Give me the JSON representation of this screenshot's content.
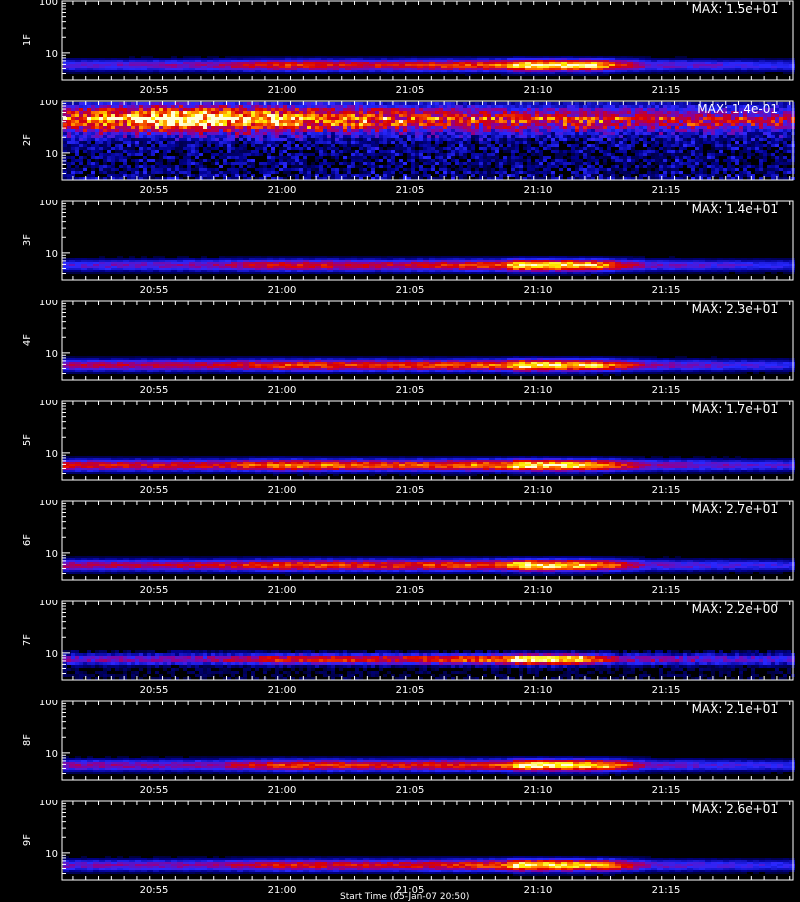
{
  "chart_data": [
    {
      "type": "heatmap",
      "ylabel": "1F",
      "max_label": "MAX: 1.5e+01",
      "max": 15,
      "yscale": "log",
      "ylim": [
        3,
        100
      ],
      "yticks": [
        "10",
        "100"
      ],
      "xticks": [
        "20:55",
        "21:00",
        "21:05",
        "21:10",
        "21:15"
      ],
      "band_center": 6,
      "noisy": false,
      "profile": [
        [
          0.0,
          0.35
        ],
        [
          0.2,
          0.45
        ],
        [
          0.3,
          0.65
        ],
        [
          0.45,
          0.6
        ],
        [
          0.6,
          0.75
        ],
        [
          0.62,
          1.0
        ],
        [
          0.72,
          0.95
        ],
        [
          0.8,
          0.4
        ],
        [
          1.0,
          0.3
        ]
      ]
    },
    {
      "type": "heatmap",
      "ylabel": "2F",
      "max_label": "MAX: 1.4e-01",
      "max": 0.14,
      "yscale": "log",
      "ylim": [
        3,
        100
      ],
      "yticks": [
        "10",
        "100"
      ],
      "xticks": [
        "20:55",
        "21:00",
        "21:05",
        "21:10",
        "21:15"
      ],
      "band_center": 50,
      "noisy": true,
      "profile": [
        [
          0.0,
          0.6
        ],
        [
          0.15,
          0.95
        ],
        [
          0.3,
          0.75
        ],
        [
          0.5,
          0.55
        ],
        [
          0.7,
          0.5
        ],
        [
          1.0,
          0.4
        ]
      ]
    },
    {
      "type": "heatmap",
      "ylabel": "3F",
      "max_label": "MAX: 1.4e+01",
      "max": 14,
      "yscale": "log",
      "ylim": [
        3,
        100
      ],
      "yticks": [
        "10",
        "100"
      ],
      "xticks": [
        "20:55",
        "21:00",
        "21:05",
        "21:10",
        "21:15"
      ],
      "band_center": 6,
      "noisy": false,
      "profile": [
        [
          0.0,
          0.35
        ],
        [
          0.2,
          0.45
        ],
        [
          0.3,
          0.62
        ],
        [
          0.45,
          0.55
        ],
        [
          0.6,
          0.7
        ],
        [
          0.62,
          1.0
        ],
        [
          0.72,
          0.9
        ],
        [
          0.8,
          0.4
        ],
        [
          1.0,
          0.3
        ]
      ]
    },
    {
      "type": "heatmap",
      "ylabel": "4F",
      "max_label": "MAX: 2.3e+01",
      "max": 23,
      "yscale": "log",
      "ylim": [
        3,
        100
      ],
      "yticks": [
        "10",
        "100"
      ],
      "xticks": [
        "20:55",
        "21:00",
        "21:05",
        "21:10",
        "21:15"
      ],
      "band_center": 6,
      "noisy": false,
      "profile": [
        [
          0.0,
          0.5
        ],
        [
          0.2,
          0.55
        ],
        [
          0.3,
          0.7
        ],
        [
          0.45,
          0.65
        ],
        [
          0.6,
          0.75
        ],
        [
          0.62,
          1.0
        ],
        [
          0.72,
          0.9
        ],
        [
          0.8,
          0.45
        ],
        [
          1.0,
          0.3
        ]
      ]
    },
    {
      "type": "heatmap",
      "ylabel": "5F",
      "max_label": "MAX: 1.7e+01",
      "max": 17,
      "yscale": "log",
      "ylim": [
        3,
        100
      ],
      "yticks": [
        "10",
        "100"
      ],
      "xticks": [
        "20:55",
        "21:00",
        "21:05",
        "21:10",
        "21:15"
      ],
      "band_center": 6,
      "noisy": false,
      "profile": [
        [
          0.0,
          0.6
        ],
        [
          0.2,
          0.6
        ],
        [
          0.3,
          0.8
        ],
        [
          0.45,
          0.7
        ],
        [
          0.6,
          0.8
        ],
        [
          0.62,
          1.0
        ],
        [
          0.72,
          0.9
        ],
        [
          0.8,
          0.45
        ],
        [
          1.0,
          0.35
        ]
      ]
    },
    {
      "type": "heatmap",
      "ylabel": "6F",
      "max_label": "MAX: 2.7e+01",
      "max": 27,
      "yscale": "log",
      "ylim": [
        3,
        100
      ],
      "yticks": [
        "10",
        "100"
      ],
      "xticks": [
        "20:55",
        "21:00",
        "21:05",
        "21:10",
        "21:15"
      ],
      "band_center": 6,
      "noisy": false,
      "profile": [
        [
          0.0,
          0.5
        ],
        [
          0.2,
          0.55
        ],
        [
          0.3,
          0.72
        ],
        [
          0.45,
          0.65
        ],
        [
          0.6,
          0.75
        ],
        [
          0.62,
          1.0
        ],
        [
          0.72,
          0.9
        ],
        [
          0.8,
          0.4
        ],
        [
          1.0,
          0.3
        ]
      ]
    },
    {
      "type": "heatmap",
      "ylabel": "7F",
      "max_label": "MAX: 2.2e+00",
      "max": 2.2,
      "yscale": "log",
      "ylim": [
        3,
        100
      ],
      "yticks": [
        "10",
        "100"
      ],
      "xticks": [
        "20:55",
        "21:00",
        "21:05",
        "21:10",
        "21:15"
      ],
      "band_center": 8,
      "noisy": true,
      "profile": [
        [
          0.0,
          0.35
        ],
        [
          0.2,
          0.4
        ],
        [
          0.3,
          0.6
        ],
        [
          0.45,
          0.55
        ],
        [
          0.6,
          0.7
        ],
        [
          0.62,
          1.0
        ],
        [
          0.7,
          0.95
        ],
        [
          0.76,
          0.4
        ],
        [
          1.0,
          0.3
        ]
      ]
    },
    {
      "type": "heatmap",
      "ylabel": "8F",
      "max_label": "MAX: 2.1e+01",
      "max": 21,
      "yscale": "log",
      "ylim": [
        3,
        100
      ],
      "yticks": [
        "10",
        "100"
      ],
      "xticks": [
        "20:55",
        "21:00",
        "21:05",
        "21:10",
        "21:15"
      ],
      "band_center": 6,
      "noisy": false,
      "profile": [
        [
          0.0,
          0.45
        ],
        [
          0.2,
          0.45
        ],
        [
          0.3,
          0.68
        ],
        [
          0.45,
          0.62
        ],
        [
          0.6,
          0.7
        ],
        [
          0.62,
          1.0
        ],
        [
          0.74,
          0.9
        ],
        [
          0.8,
          0.4
        ],
        [
          1.0,
          0.3
        ]
      ]
    },
    {
      "type": "heatmap",
      "ylabel": "9F",
      "max_label": "MAX: 2.6e+01",
      "max": 26,
      "yscale": "log",
      "ylim": [
        3,
        100
      ],
      "yticks": [
        "10",
        "100"
      ],
      "xticks": [
        "20:55",
        "21:00",
        "21:05",
        "21:10",
        "21:15"
      ],
      "band_center": 6,
      "noisy": false,
      "profile": [
        [
          0.0,
          0.4
        ],
        [
          0.2,
          0.45
        ],
        [
          0.3,
          0.62
        ],
        [
          0.45,
          0.58
        ],
        [
          0.6,
          0.72
        ],
        [
          0.62,
          1.0
        ],
        [
          0.74,
          0.85
        ],
        [
          0.8,
          0.4
        ],
        [
          1.0,
          0.3
        ]
      ]
    }
  ],
  "footer": "Start Time (05-Jan-07 20:50)"
}
